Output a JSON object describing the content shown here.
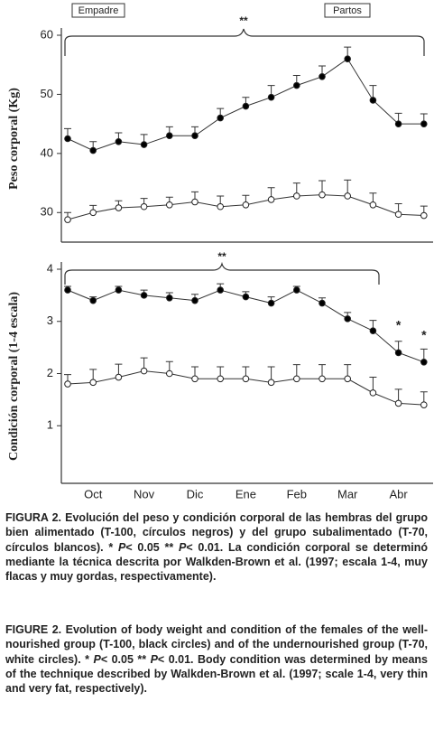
{
  "chart_data": [
    {
      "type": "line",
      "ylabel": "Peso corporal (Kg)",
      "ylim": [
        25,
        60
      ],
      "yticks": [
        30,
        40,
        50,
        60
      ],
      "annotations": [
        "Empadre",
        "Partos",
        "**"
      ],
      "series": [
        {
          "name": "T-100",
          "color": "#000000",
          "values": [
            42.5,
            40.5,
            42,
            41.5,
            43,
            43,
            46,
            48,
            49.5,
            51.5,
            53,
            56,
            49,
            45,
            45
          ],
          "errors": [
            1.7,
            1.5,
            1.5,
            1.7,
            1.5,
            1.5,
            1.6,
            1.5,
            2,
            1.7,
            1.8,
            2,
            2.5,
            1.8,
            1.7
          ]
        },
        {
          "name": "T-70",
          "color": "#ffffff",
          "values": [
            28.8,
            30,
            30.8,
            31,
            31.3,
            31.8,
            31,
            31.3,
            32.2,
            32.8,
            33,
            32.8,
            31.3,
            29.7,
            29.5
          ],
          "errors": [
            1.2,
            1.2,
            1.2,
            1.4,
            1.3,
            1.7,
            1.8,
            1.6,
            2,
            2.2,
            2.4,
            2.7,
            2,
            1.8,
            1.6
          ]
        }
      ]
    },
    {
      "type": "line",
      "ylabel": "Condición corporal (1-4 escala)",
      "ylim": [
        0,
        4
      ],
      "yticks": [
        1,
        2,
        3,
        4
      ],
      "categories": [
        null,
        "Oct",
        null,
        "Nov",
        null,
        "Dic",
        null,
        "Ene",
        null,
        "Feb",
        null,
        "Mar",
        null,
        "Abr",
        null
      ],
      "annotations": [
        "**",
        "*",
        "*"
      ],
      "series": [
        {
          "name": "T-100",
          "color": "#000000",
          "values": [
            3.6,
            3.4,
            3.6,
            3.5,
            3.45,
            3.4,
            3.6,
            3.47,
            3.35,
            3.6,
            3.35,
            3.05,
            2.82,
            2.4,
            2.22
          ],
          "errors": [
            0.07,
            0.07,
            0.07,
            0.1,
            0.1,
            0.12,
            0.12,
            0.1,
            0.12,
            0.07,
            0.1,
            0.12,
            0.2,
            0.22,
            0.25
          ]
        },
        {
          "name": "T-70",
          "color": "#ffffff",
          "values": [
            1.8,
            1.83,
            1.93,
            2.05,
            2,
            1.9,
            1.9,
            1.9,
            1.83,
            1.9,
            1.9,
            1.9,
            1.63,
            1.43,
            1.4
          ],
          "errors": [
            0.18,
            0.25,
            0.25,
            0.25,
            0.23,
            0.23,
            0.23,
            0.23,
            0.3,
            0.27,
            0.27,
            0.27,
            0.3,
            0.27,
            0.25
          ]
        }
      ]
    }
  ],
  "caption_es": [
    "FIGURA 2. Evolución del peso y condición corporal de las hembras del grupo bien alimentado (T-100, círculos negros) y del grupo subalimentado (T-70, círculos blancos). * ",
    "P",
    "< 0.05 ** ",
    "P",
    "< 0.01. La condición corporal se determinó mediante la técnica descrita por Walkden-Brown et al. (1997; escala 1-4, muy flacas y muy gordas, respectivamente)."
  ],
  "caption_en": [
    "FIGURE 2. Evolution of body weight and condition of the females of the well-nourished group (T-100, black circles) and of the undernourished group (T-70, white circles). * ",
    "P",
    "< 0.05 ** ",
    "P",
    "< 0.01. Body condition was determined by means of the technique described by Walkden-Brown et al. (1997; scale 1-4, very thin and very fat, respectively)."
  ]
}
